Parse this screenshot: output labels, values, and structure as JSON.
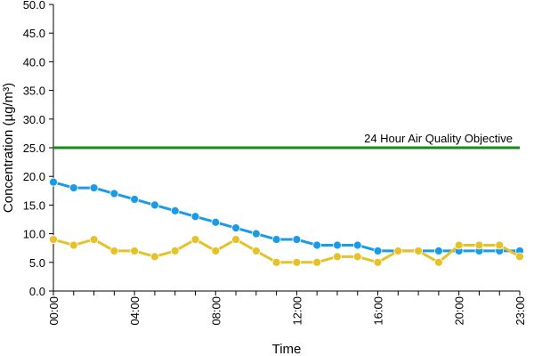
{
  "chart_data": {
    "type": "line",
    "xlabel": "Time",
    "ylabel": "Concentration (µg/m³)",
    "ylim": [
      0,
      50
    ],
    "y_ticks": [
      "0.0",
      "5.0",
      "10.0",
      "15.0",
      "20.0",
      "25.0",
      "30.0",
      "35.0",
      "40.0",
      "45.0",
      "50.0"
    ],
    "x_hours": [
      0,
      1,
      2,
      3,
      4,
      5,
      6,
      7,
      8,
      9,
      10,
      11,
      12,
      13,
      14,
      15,
      16,
      17,
      18,
      19,
      20,
      21,
      22,
      23
    ],
    "x_tick_labels": [
      {
        "hour": 0,
        "label": "00:00"
      },
      {
        "hour": 4,
        "label": "04:00"
      },
      {
        "hour": 8,
        "label": "08:00"
      },
      {
        "hour": 12,
        "label": "12:00"
      },
      {
        "hour": 16,
        "label": "16:00"
      },
      {
        "hour": 20,
        "label": "20:00"
      },
      {
        "hour": 23,
        "label": "23:00"
      }
    ],
    "grid": false,
    "legend": "none",
    "series": [
      {
        "color": "#1a9be8",
        "values": [
          19,
          18,
          18,
          17,
          16,
          15,
          14,
          13,
          12,
          11,
          10,
          9,
          9,
          8,
          8,
          8,
          7,
          7,
          7,
          7,
          7,
          7,
          7,
          7
        ]
      },
      {
        "color": "#e6c22a",
        "values": [
          9,
          8,
          9,
          7,
          7,
          6,
          7,
          9,
          7,
          9,
          7,
          5,
          5,
          5,
          6,
          6,
          5,
          7,
          7,
          5,
          8,
          8,
          8,
          6
        ]
      }
    ],
    "reference_line": {
      "value": 25,
      "label": "24 Hour Air Quality Objective",
      "color": "#1b8a1b"
    }
  }
}
